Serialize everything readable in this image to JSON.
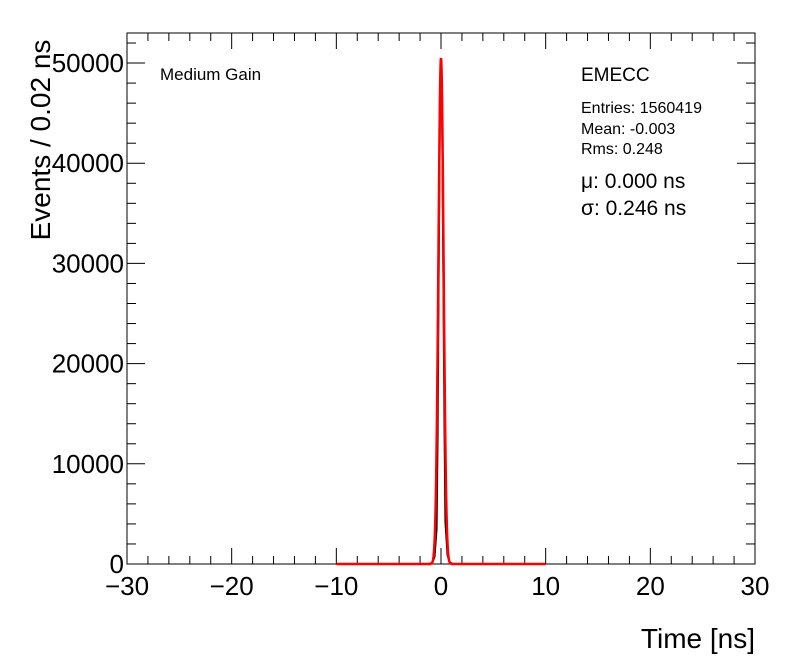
{
  "chart_data": {
    "type": "line",
    "xlabel": "Time [ns]",
    "ylabel": "Events / 0.02 ns",
    "xlim": [
      -30,
      30
    ],
    "ylim": [
      0,
      53000
    ],
    "x_ticks": [
      -30,
      -20,
      -10,
      0,
      10,
      20,
      30
    ],
    "x_tick_labels": [
      "−30",
      "−20",
      "−10",
      "0",
      "10",
      "20",
      "30"
    ],
    "y_ticks": [
      0,
      10000,
      20000,
      30000,
      40000,
      50000
    ],
    "y_tick_labels": [
      "0",
      "10000",
      "20000",
      "30000",
      "40000",
      "50000"
    ],
    "grid": false,
    "series": [
      {
        "kind": "histogram",
        "color": "#000000",
        "x": [
          -10,
          -1.2,
          -0.8,
          -0.6,
          -0.4,
          -0.3,
          -0.2,
          -0.1,
          -0.05,
          0,
          0.05,
          0.1,
          0.2,
          0.3,
          0.4,
          0.6,
          0.8,
          1.2,
          10
        ],
        "y": [
          0,
          0,
          150,
          700,
          3500,
          13000,
          29000,
          43000,
          49000,
          50500,
          49000,
          43000,
          29000,
          15000,
          4200,
          900,
          200,
          0,
          0
        ]
      },
      {
        "kind": "gaussian-fit",
        "color": "#ff0000",
        "mu": 0.0,
        "sigma": 0.246,
        "amplitude": 50500,
        "range": [
          -10,
          10
        ]
      }
    ],
    "annotations": {
      "gain": "Medium Gain",
      "detector": "EMECC",
      "entries": "Entries: 1560419",
      "mean": "Mean: -0.003",
      "rms": "Rms: 0.248",
      "mu": "μ: 0.000 ns",
      "sigma": "σ: 0.246 ns"
    }
  }
}
